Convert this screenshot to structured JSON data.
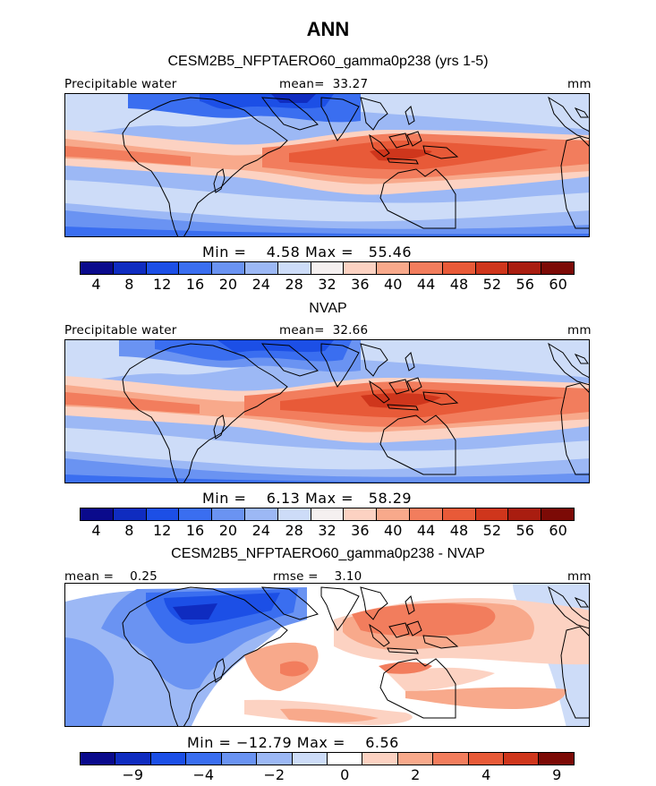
{
  "figure": {
    "title": "ANN",
    "panel1_title": "CESM2B5_NFPTAERO60_gamma0p238 (yrs 1-5)",
    "panel2_title": "NVAP",
    "panel3_title": "CESM2B5_NFPTAERO60_gamma0p238 - NVAP"
  },
  "colors": {
    "abs_scale": [
      "#0a0a8c",
      "#0f2cc0",
      "#1c4fe6",
      "#3a6ef0",
      "#6a93f2",
      "#9cb8f5",
      "#cddcf8",
      "#f5f0f0",
      "#fcd2c2",
      "#f8a98b",
      "#f27d5d",
      "#e85a38",
      "#cf361c",
      "#a91d10",
      "#7c0a06"
    ],
    "diff_scale": [
      "#0a0a8c",
      "#0f2cc0",
      "#1c4fe6",
      "#3a6ef0",
      "#6a93f2",
      "#9cb8f5",
      "#cddcf8",
      "#ffffff",
      "#fcd2c2",
      "#f8a98b",
      "#f27d5d",
      "#e85a38",
      "#cf361c",
      "#7c0a06"
    ]
  },
  "chart_data": [
    {
      "type": "heatmap",
      "title": "CESM2B5_NFPTAERO60_gamma0p238 (yrs 1-5)",
      "variable": "Precipitable water",
      "units": "mm",
      "mean_label": "mean=",
      "mean": "33.27",
      "min_label": "Min =",
      "min": "4.58",
      "max_label": "Max =",
      "max": "55.46",
      "colorbar_ticks": [
        "4",
        "8",
        "12",
        "16",
        "20",
        "24",
        "28",
        "32",
        "36",
        "40",
        "44",
        "48",
        "52",
        "56",
        "60"
      ]
    },
    {
      "type": "heatmap",
      "title": "NVAP",
      "variable": "Precipitable water",
      "units": "mm",
      "mean_label": "mean=",
      "mean": "32.66",
      "min_label": "Min =",
      "min": "6.13",
      "max_label": "Max =",
      "max": "58.29",
      "colorbar_ticks": [
        "4",
        "8",
        "12",
        "16",
        "20",
        "24",
        "28",
        "32",
        "36",
        "40",
        "44",
        "48",
        "52",
        "56",
        "60"
      ]
    },
    {
      "type": "heatmap",
      "title": "CESM2B5_NFPTAERO60_gamma0p238 - NVAP",
      "units": "mm",
      "mean_label": "mean =",
      "mean": "0.25",
      "rmse_label": "rmse =",
      "rmse": "3.10",
      "min_label": "Min =",
      "min": "−12.79",
      "max_label": "Max =",
      "max": "6.56",
      "colorbar_ticks": [
        "−9",
        "−4",
        "−2",
        "0",
        "2",
        "4",
        "9"
      ]
    }
  ]
}
